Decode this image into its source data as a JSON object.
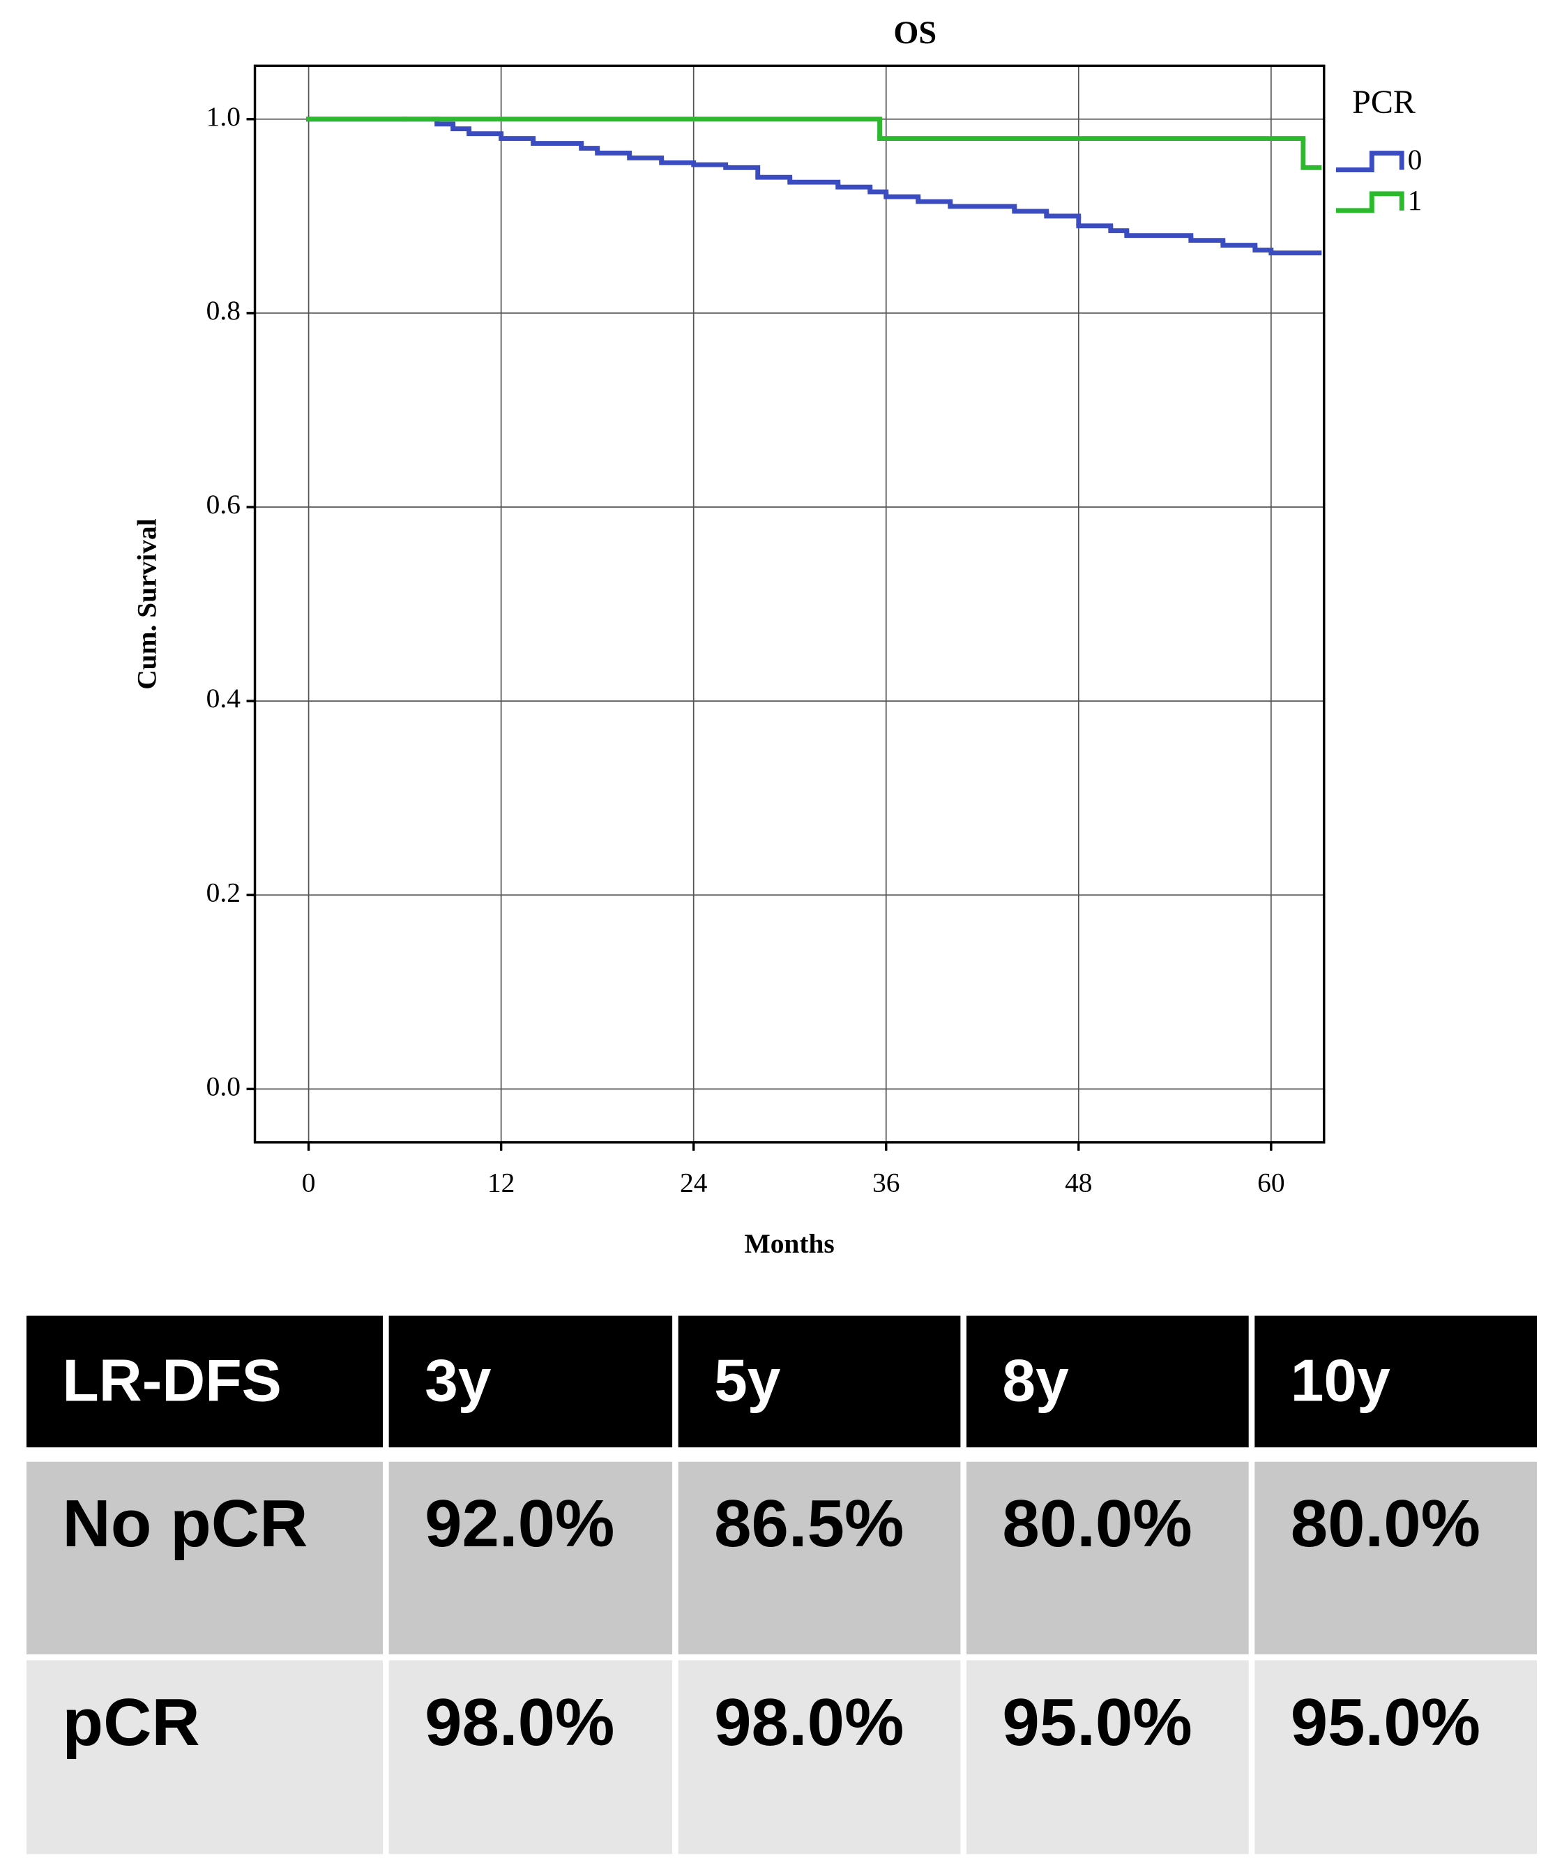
{
  "chart_data": {
    "type": "step",
    "title": "OS",
    "xlabel": "Months",
    "ylabel": "Cum. Survival",
    "xlim": [
      -3.35,
      63.3
    ],
    "ylim": [
      -0.055,
      1.055
    ],
    "xticks": [
      0,
      12,
      24,
      36,
      48,
      60
    ],
    "yticks": [
      {
        "value": 0,
        "label": "0.0"
      },
      {
        "value": 0.2,
        "label": "0.2"
      },
      {
        "value": 0.4,
        "label": "0.4"
      },
      {
        "value": 0.6,
        "label": "0.6"
      },
      {
        "value": 0.8,
        "label": "0.8"
      },
      {
        "value": 1,
        "label": "1.0"
      }
    ],
    "grid": true,
    "legend_title": "PCR",
    "legend": "right",
    "series": [
      {
        "name": "0",
        "color": "#3b4cc0",
        "x": [
          0,
          6,
          8,
          9,
          10,
          12,
          14,
          17,
          18,
          20,
          22,
          24,
          26,
          28,
          30,
          33,
          35,
          36,
          38,
          40,
          44,
          46,
          48,
          50,
          51,
          55,
          57,
          59,
          60,
          63
        ],
        "values": [
          1,
          1,
          0.995,
          0.99,
          0.985,
          0.98,
          0.975,
          0.97,
          0.965,
          0.96,
          0.955,
          0.953,
          0.95,
          0.94,
          0.935,
          0.93,
          0.925,
          0.92,
          0.915,
          0.91,
          0.905,
          0.9,
          0.89,
          0.885,
          0.88,
          0.875,
          0.87,
          0.865,
          0.862,
          0.862
        ]
      },
      {
        "name": "1",
        "color": "#2db92d",
        "x": [
          0,
          35.6,
          62,
          63
        ],
        "values": [
          1,
          0.98,
          0.95,
          0.95
        ]
      }
    ]
  },
  "table": {
    "header": [
      "LR-DFS",
      "3y",
      "5y",
      "8y",
      "10y"
    ],
    "rows": [
      [
        "No pCR",
        "92.0%",
        "86.5%",
        "80.0%",
        "80.0%"
      ],
      [
        "pCR",
        "98.0%",
        "98.0%",
        "95.0%",
        "95.0%"
      ]
    ]
  }
}
